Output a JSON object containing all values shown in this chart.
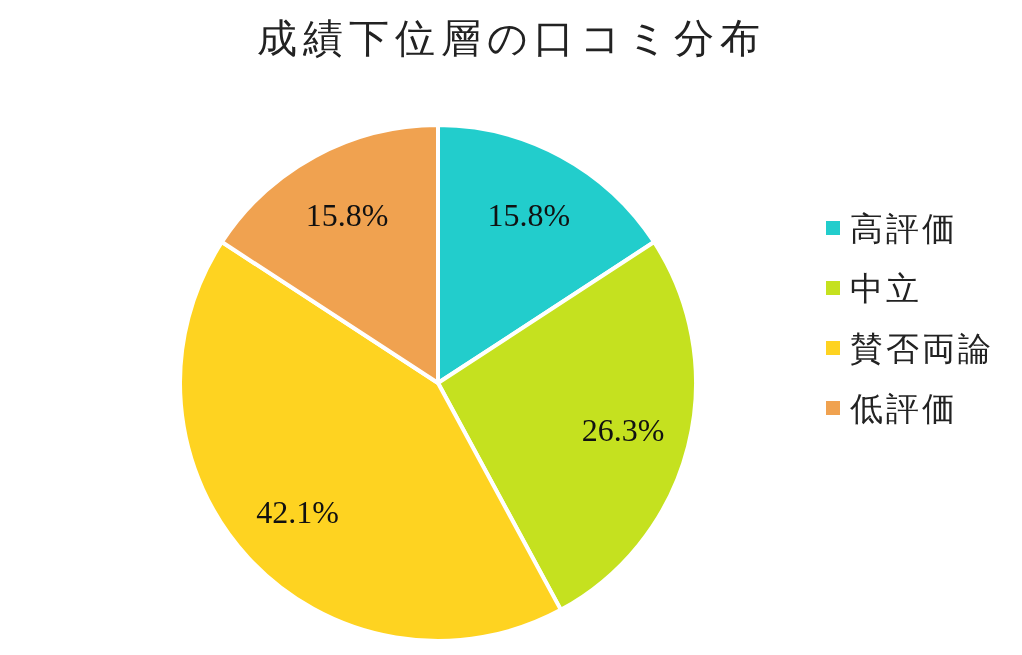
{
  "chart_data": {
    "type": "pie",
    "title": "成績下位層の口コミ分布",
    "categories": [
      "高評価",
      "中立",
      "賛否両論",
      "低評価"
    ],
    "values": [
      15.8,
      26.3,
      42.1,
      15.8
    ],
    "colors": [
      "#22cdcc",
      "#c5e11f",
      "#fed321",
      "#f0a250"
    ],
    "value_labels": [
      "15.8%",
      "26.3%",
      "42.1%",
      "15.8%"
    ],
    "legend": "right"
  }
}
